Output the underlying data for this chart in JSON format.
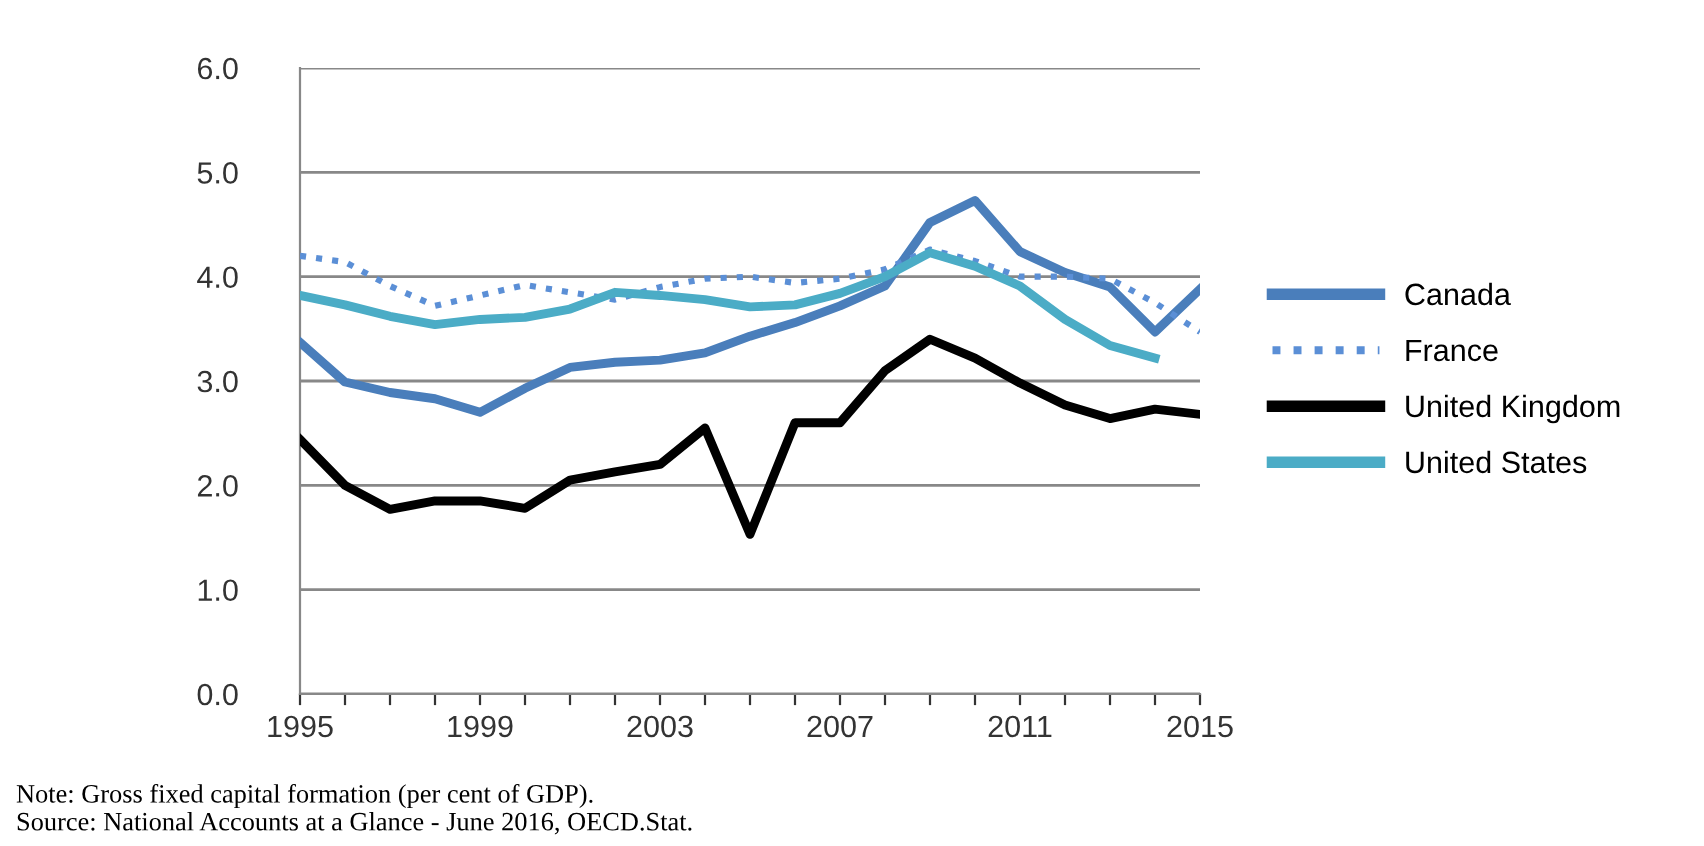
{
  "chart_data": {
    "type": "line",
    "x": [
      1995,
      1996,
      1997,
      1998,
      1999,
      2000,
      2001,
      2002,
      2003,
      2004,
      2005,
      2006,
      2007,
      2008,
      2009,
      2010,
      2011,
      2012,
      2013,
      2014,
      2015
    ],
    "series": [
      {
        "name": "Canada",
        "color": "#4a7ebb",
        "line_style": "solid",
        "values": [
          3.37,
          2.99,
          2.89,
          2.83,
          2.7,
          2.93,
          3.13,
          3.18,
          3.2,
          3.27,
          3.43,
          3.56,
          3.72,
          3.91,
          4.52,
          4.73,
          4.24,
          4.04,
          3.9,
          3.47,
          3.88
        ]
      },
      {
        "name": "France",
        "color": "#5b8fd6",
        "line_style": "dotted",
        "values": [
          4.2,
          4.14,
          3.91,
          3.72,
          3.82,
          3.92,
          3.85,
          3.78,
          3.9,
          3.98,
          4.0,
          3.94,
          3.98,
          4.07,
          4.26,
          4.15,
          4.0,
          4.0,
          3.98,
          3.75,
          3.47
        ]
      },
      {
        "name": "United Kingdom",
        "color": "#000000",
        "line_style": "solid",
        "values": [
          2.44,
          2.0,
          1.77,
          1.85,
          1.85,
          1.78,
          2.05,
          2.13,
          2.2,
          2.55,
          1.53,
          2.6,
          2.6,
          3.1,
          3.4,
          3.22,
          2.98,
          2.77,
          2.64,
          2.73,
          2.68
        ]
      },
      {
        "name": "United States",
        "color": "#4bacc6",
        "line_style": "solid",
        "values": [
          3.82,
          3.73,
          3.62,
          3.54,
          3.59,
          3.61,
          3.69,
          3.85,
          3.82,
          3.78,
          3.71,
          3.73,
          3.84,
          4.0,
          4.23,
          4.1,
          3.91,
          3.59,
          3.34,
          3.22,
          null
        ]
      }
    ],
    "xlim": [
      1995,
      2015
    ],
    "xticks": [
      1995,
      {
        "value": 1996,
        "label": null
      },
      {
        "value": 1997,
        "label": null
      },
      {
        "value": 1998,
        "label": null
      },
      1999,
      {
        "value": 2000,
        "label": null
      },
      {
        "value": 2001,
        "label": null
      },
      {
        "value": 2002,
        "label": null
      },
      2003,
      {
        "value": 2004,
        "label": null
      },
      {
        "value": 2005,
        "label": null
      },
      {
        "value": 2006,
        "label": null
      },
      2007,
      {
        "value": 2008,
        "label": null
      },
      {
        "value": 2009,
        "label": null
      },
      {
        "value": 2010,
        "label": null
      },
      2011,
      {
        "value": 2012,
        "label": null
      },
      {
        "value": 2013,
        "label": null
      },
      {
        "value": 2014,
        "label": null
      },
      2015
    ],
    "ylim": [
      0,
      6
    ],
    "yticks": [
      {
        "value": 0,
        "label": "0.0"
      },
      {
        "value": 1,
        "label": "1.0"
      },
      {
        "value": 2,
        "label": "2.0"
      },
      {
        "value": 3,
        "label": "3.0"
      },
      {
        "value": 4,
        "label": "4.0"
      },
      {
        "value": 5,
        "label": "5.0"
      },
      {
        "value": 6,
        "label": "6.0"
      }
    ],
    "grid": "y",
    "legend": "right",
    "marker": "none",
    "annotations": [
      "Note: Gross fixed capital formation (per cent of GDP).",
      "Source: National Accounts at a Glance - June 2016, OECD.Stat."
    ]
  }
}
